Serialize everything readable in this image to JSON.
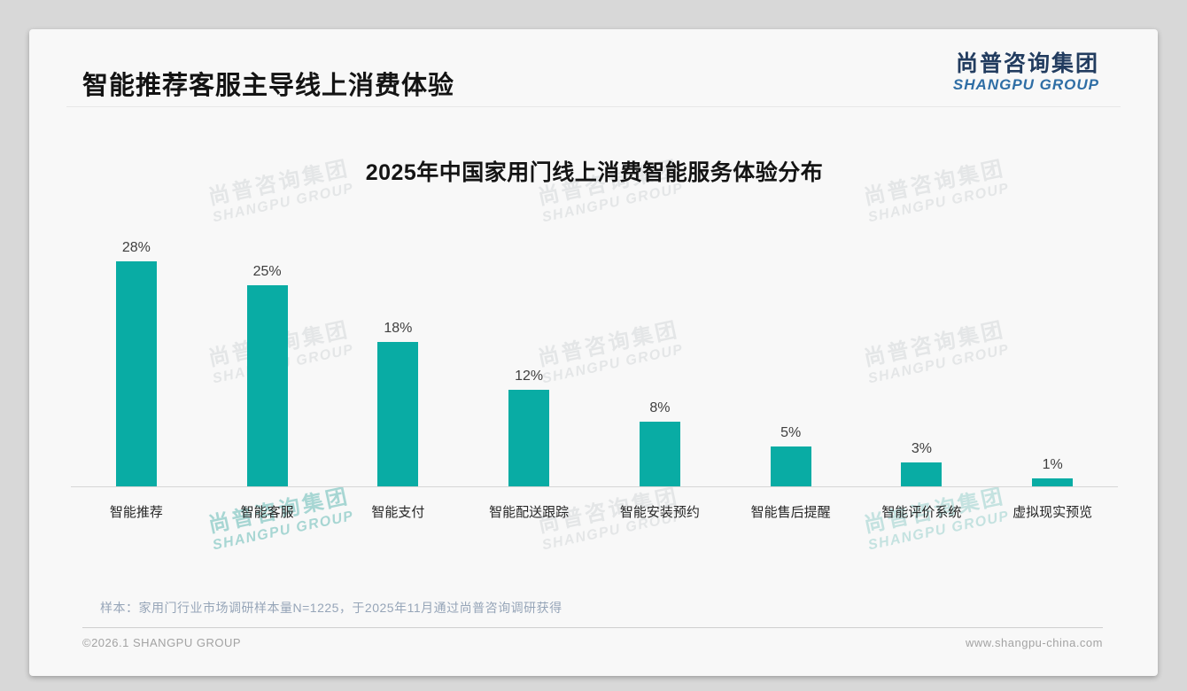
{
  "page": {
    "title": "智能推荐客服主导线上消费体验",
    "logo": {
      "cn": "尚普咨询集团",
      "en": "SHANGPU GROUP"
    },
    "watermark": {
      "cn": "尚普咨询集团",
      "en": "SHANGPU GROUP"
    },
    "footnote": "样本：家用门行业市场调研样本量N=1225，于2025年11月通过尚普咨询调研获得",
    "footer_left": "©2026.1 SHANGPU GROUP",
    "footer_right": "www.shangpu-china.com"
  },
  "chart_data": {
    "type": "bar",
    "title": "2025年中国家用门线上消费智能服务体验分布",
    "categories": [
      "智能推荐",
      "智能客服",
      "智能支付",
      "智能配送跟踪",
      "智能安装预约",
      "智能售后提醒",
      "智能评价系统",
      "虚拟现实预览"
    ],
    "values": [
      28,
      25,
      18,
      12,
      8,
      5,
      3,
      1
    ],
    "unit": "%",
    "data_labels": [
      "28%",
      "25%",
      "18%",
      "12%",
      "8%",
      "5%",
      "3%",
      "1%"
    ],
    "bar_color": "#09aca4",
    "xlabel": "",
    "ylabel": "",
    "ylim": [
      0,
      30
    ],
    "grid": false,
    "legend": false
  }
}
